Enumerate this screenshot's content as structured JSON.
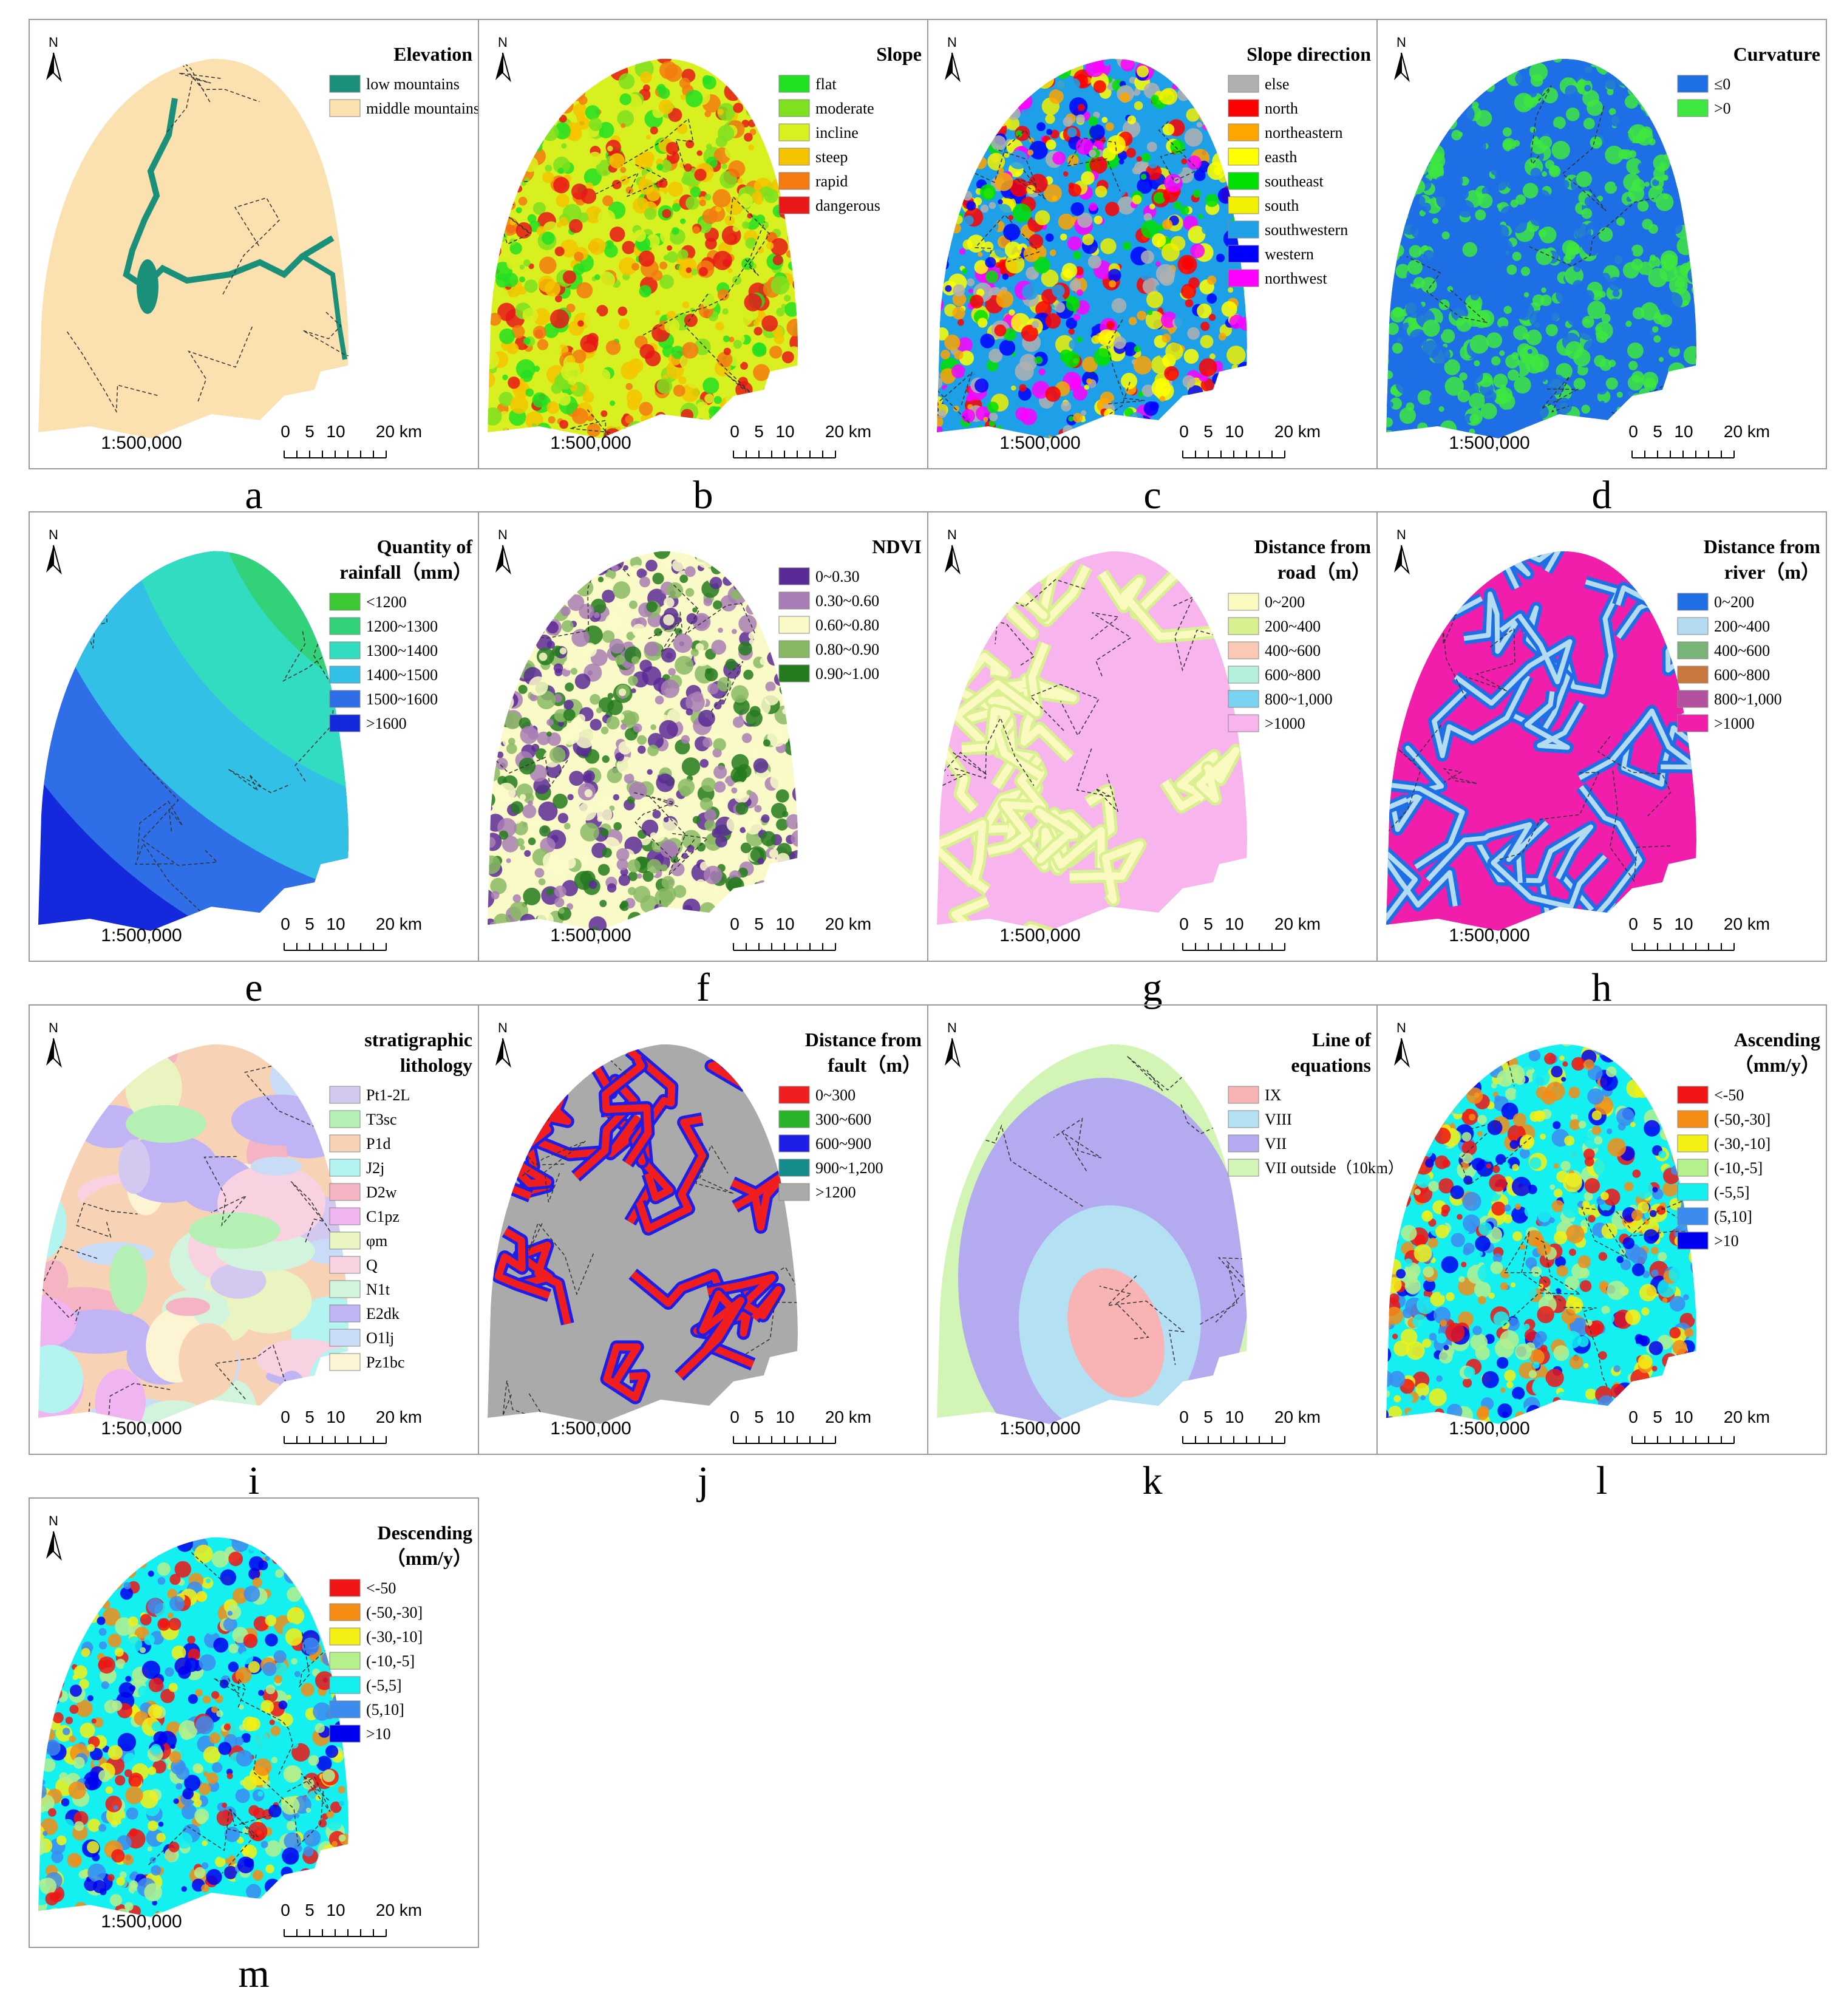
{
  "north": "N",
  "scale": "1:500,000",
  "scale_bar": [
    "0",
    "5",
    "10",
    "20 km"
  ],
  "panels": [
    {
      "label": "a",
      "title": [
        "Elevation"
      ],
      "items": [
        {
          "label": "low mountains",
          "color": "#1a8f7a"
        },
        {
          "label": "middle mountains",
          "color": "#fbe0b0"
        }
      ]
    },
    {
      "label": "b",
      "title": [
        "Slope"
      ],
      "items": [
        {
          "label": "flat",
          "color": "#22e022"
        },
        {
          "label": "moderate",
          "color": "#7ee020"
        },
        {
          "label": "incline",
          "color": "#d8f020"
        },
        {
          "label": "steep",
          "color": "#f5c400"
        },
        {
          "label": "rapid",
          "color": "#f57a10"
        },
        {
          "label": "dangerous",
          "color": "#e81818"
        }
      ]
    },
    {
      "label": "c",
      "title": [
        "Slope direction"
      ],
      "items": [
        {
          "label": "else",
          "color": "#b0b0b0"
        },
        {
          "label": "north",
          "color": "#ff0000"
        },
        {
          "label": "northeastern",
          "color": "#ffa500"
        },
        {
          "label": "easth",
          "color": "#ffff00"
        },
        {
          "label": "southeast",
          "color": "#00e000"
        },
        {
          "label": "south",
          "color": "#f0f000"
        },
        {
          "label": "southwestern",
          "color": "#1ea0e8"
        },
        {
          "label": "western",
          "color": "#0000ff"
        },
        {
          "label": "northwest",
          "color": "#ff00ff"
        }
      ]
    },
    {
      "label": "d",
      "title": [
        "Curvature"
      ],
      "items": [
        {
          "label": "≤0",
          "color": "#1e6ee6"
        },
        {
          "label": ">0",
          "color": "#3ee83e"
        }
      ]
    },
    {
      "label": "e",
      "title": [
        "Quantity of",
        "rainfall（mm）"
      ],
      "items": [
        {
          "label": "<1200",
          "color": "#3cc832"
        },
        {
          "label": "1200~1300",
          "color": "#32d27a"
        },
        {
          "label": "1300~1400",
          "color": "#32dcc0"
        },
        {
          "label": "1400~1500",
          "color": "#32c0e6"
        },
        {
          "label": "1500~1600",
          "color": "#2e6ee6"
        },
        {
          "label": ">1600",
          "color": "#1428dc"
        }
      ]
    },
    {
      "label": "f",
      "title": [
        "NDVI"
      ],
      "items": [
        {
          "label": "0~0.30",
          "color": "#5a2a96"
        },
        {
          "label": "0.30~0.60",
          "color": "#a87cb4"
        },
        {
          "label": "0.60~0.80",
          "color": "#fafac8"
        },
        {
          "label": "0.80~0.90",
          "color": "#88b864"
        },
        {
          "label": "0.90~1.00",
          "color": "#247a1e"
        }
      ]
    },
    {
      "label": "g",
      "title": [
        "Distance from",
        "road（m）"
      ],
      "items": [
        {
          "label": "0~200",
          "color": "#fafac0"
        },
        {
          "label": "200~400",
          "color": "#d8f090"
        },
        {
          "label": "400~600",
          "color": "#fac8b4"
        },
        {
          "label": "600~800",
          "color": "#b4f0dc"
        },
        {
          "label": "800~1,000",
          "color": "#78d2f0"
        },
        {
          "label": ">1000",
          "color": "#f8b4ec"
        }
      ]
    },
    {
      "label": "h",
      "title": [
        "Distance from",
        "river（m）"
      ],
      "items": [
        {
          "label": "0~200",
          "color": "#1e6ee6"
        },
        {
          "label": "200~400",
          "color": "#b4dcf0"
        },
        {
          "label": "400~600",
          "color": "#78b478"
        },
        {
          "label": "600~800",
          "color": "#c8783c"
        },
        {
          "label": "800~1,000",
          "color": "#b450a0"
        },
        {
          "label": ">1000",
          "color": "#f01eaa"
        }
      ]
    },
    {
      "label": "i",
      "title": [
        "stratigraphic",
        "lithology"
      ],
      "items": [
        {
          "label": "Pt1-2L",
          "color": "#d2c8f0"
        },
        {
          "label": "T3sc",
          "color": "#b4f0b4"
        },
        {
          "label": "P1d",
          "color": "#f8d2b4"
        },
        {
          "label": "J2j",
          "color": "#b4f4f0"
        },
        {
          "label": "D2w",
          "color": "#f4b4c4"
        },
        {
          "label": "C1pz",
          "color": "#f0b4f0"
        },
        {
          "label": "φm",
          "color": "#eaf4c0"
        },
        {
          "label": "Q",
          "color": "#f8d2e0"
        },
        {
          "label": "N1t",
          "color": "#d2f4dc"
        },
        {
          "label": "E2dk",
          "color": "#c0b4f4"
        },
        {
          "label": "O1lj",
          "color": "#c8dcf8"
        },
        {
          "label": "Pz1bc",
          "color": "#fcf4d2"
        }
      ]
    },
    {
      "label": "j",
      "title": [
        "Distance from",
        "fault（m）"
      ],
      "items": [
        {
          "label": "0~300",
          "color": "#f01e1e"
        },
        {
          "label": "300~600",
          "color": "#28b428"
        },
        {
          "label": "600~900",
          "color": "#1e1ee6"
        },
        {
          "label": "900~1,200",
          "color": "#148c8c"
        },
        {
          "label": ">1200",
          "color": "#aaaaaa"
        }
      ]
    },
    {
      "label": "k",
      "title": [
        "Line of",
        "equations"
      ],
      "items": [
        {
          "label": "IX",
          "color": "#f8b4b4"
        },
        {
          "label": "VIII",
          "color": "#b4e0f4"
        },
        {
          "label": "VII",
          "color": "#b4aaf0"
        },
        {
          "label": "VII outside（10km）",
          "color": "#d2f4b4"
        }
      ]
    },
    {
      "label": "l",
      "title": [
        "Ascending",
        "（mm/y）"
      ],
      "items": [
        {
          "label": "<-50",
          "color": "#f01414"
        },
        {
          "label": "(-50,-30]",
          "color": "#f58c14"
        },
        {
          "label": "(-30,-10]",
          "color": "#f5f014"
        },
        {
          "label": "(-10,-5]",
          "color": "#b4f08c"
        },
        {
          "label": "(-5,5]",
          "color": "#14f0f0"
        },
        {
          "label": "(5,10]",
          "color": "#3c8cf0"
        },
        {
          "label": ">10",
          "color": "#0000f0"
        }
      ]
    },
    {
      "label": "m",
      "title": [
        "Descending",
        "（mm/y）"
      ],
      "items": [
        {
          "label": "<-50",
          "color": "#f01414"
        },
        {
          "label": "(-50,-30]",
          "color": "#f58c14"
        },
        {
          "label": "(-30,-10]",
          "color": "#f5f014"
        },
        {
          "label": "(-10,-5]",
          "color": "#b4f08c"
        },
        {
          "label": "(-5,5]",
          "color": "#14f0f0"
        },
        {
          "label": "(5,10]",
          "color": "#3c8cf0"
        },
        {
          "label": ">10",
          "color": "#0000f0"
        }
      ]
    }
  ]
}
